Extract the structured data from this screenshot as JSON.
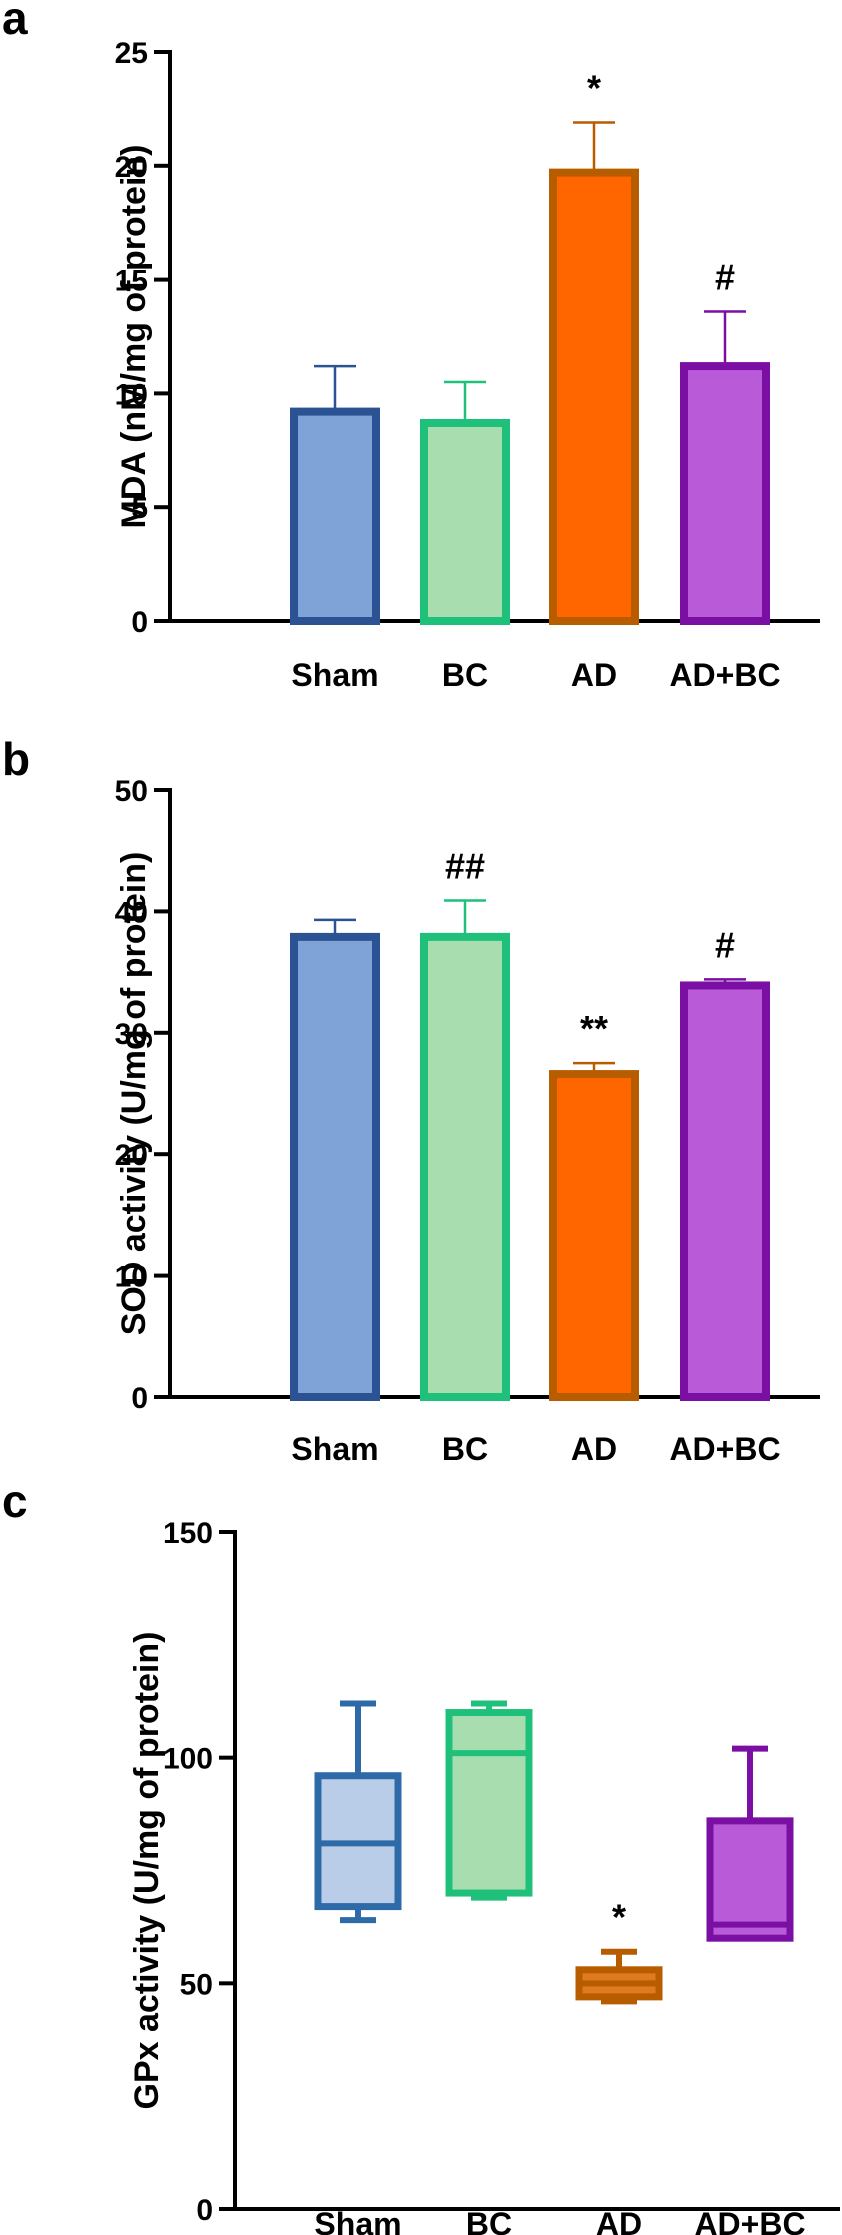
{
  "chart_data": [
    {
      "panel": "a",
      "type": "bar",
      "ylabel": "MDA (nM/mg of protein)",
      "ylim": [
        0,
        25
      ],
      "yticks": [
        0,
        5,
        10,
        15,
        20,
        25
      ],
      "categories": [
        "Sham",
        "BC",
        "AD",
        "AD+BC"
      ],
      "values": [
        9.2,
        8.7,
        19.7,
        11.2
      ],
      "errors": [
        2.0,
        1.8,
        2.2,
        2.4
      ],
      "annotations": [
        "",
        "",
        "*",
        "#"
      ],
      "colors": {
        "fill": [
          "#7fa3d6",
          "#a8ddb0",
          "#ff6600",
          "#b95bd8"
        ],
        "stroke": [
          "#2b5393",
          "#1fc07a",
          "#b85c00",
          "#7b0fa3"
        ]
      }
    },
    {
      "panel": "b",
      "type": "bar",
      "ylabel": "SOD activity (U/mg of protein)",
      "ylim": [
        0,
        50
      ],
      "yticks": [
        0,
        10,
        20,
        30,
        40,
        50
      ],
      "categories": [
        "Sham",
        "BC",
        "AD",
        "AD+BC"
      ],
      "values": [
        37.9,
        37.9,
        26.6,
        33.9
      ],
      "errors": [
        1.4,
        3.0,
        0.9,
        0.5
      ],
      "annotations": [
        "",
        "##",
        "**",
        "#"
      ],
      "colors": {
        "fill": [
          "#7fa3d6",
          "#a8ddb0",
          "#ff6600",
          "#b95bd8"
        ],
        "stroke": [
          "#2b5393",
          "#1fc07a",
          "#b85c00",
          "#7b0fa3"
        ]
      }
    },
    {
      "panel": "c",
      "type": "box",
      "ylabel": "GPx activity (U/mg of protein)",
      "ylim": [
        0,
        150
      ],
      "yticks": [
        0,
        50,
        100,
        150
      ],
      "categories": [
        "Sham",
        "BC",
        "AD",
        "AD+BC"
      ],
      "boxes": [
        {
          "min": 64,
          "q1": 67,
          "median": 81,
          "q3": 96,
          "max": 112
        },
        {
          "min": 69,
          "q1": 70,
          "median": 101,
          "q3": 110,
          "max": 112
        },
        {
          "min": 46,
          "q1": 47,
          "median": 50,
          "q3": 53,
          "max": 57
        },
        {
          "min": 60,
          "q1": 60,
          "median": 63,
          "q3": 86,
          "max": 102
        }
      ],
      "annotations": [
        "",
        "",
        "*",
        ""
      ],
      "colors": {
        "fill": [
          "#b9cde9",
          "#a8ddb0",
          "#e07a20",
          "#b95bd8"
        ],
        "stroke": [
          "#2f6aa8",
          "#1fc07a",
          "#b85c00",
          "#7b0fa3"
        ]
      }
    }
  ]
}
